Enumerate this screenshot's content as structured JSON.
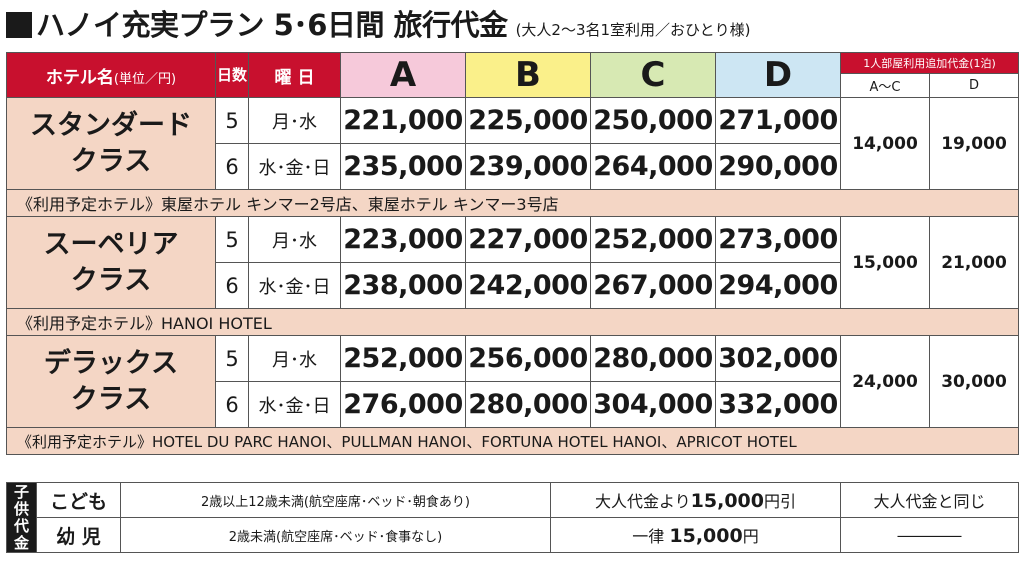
{
  "title": {
    "main": "ハノイ充実プラン 5･6日間 旅行代金",
    "sub": "(大人2～3名1室利用／おひとり様)"
  },
  "header": {
    "hotel": "ホテル名",
    "unit": "(単位／円)",
    "days": "日数",
    "weekday": "曜 日",
    "cols": [
      "A",
      "B",
      "C",
      "D"
    ],
    "extra": "1人部屋利用追加代金(1泊)",
    "extra_sub": [
      "A～C",
      "D"
    ]
  },
  "classes": [
    {
      "name_line1": "スタンダード",
      "name_line2": "クラス",
      "rows": [
        {
          "days": "5",
          "weekday": "月･水",
          "prices": [
            "221,000",
            "225,000",
            "250,000",
            "271,000"
          ]
        },
        {
          "days": "6",
          "weekday": "水･金･日",
          "prices": [
            "235,000",
            "239,000",
            "264,000",
            "290,000"
          ]
        }
      ],
      "extra": [
        "14,000",
        "19,000"
      ],
      "hotels": "《利用予定ホテル》東屋ホテル キンマー2号店、東屋ホテル キンマー3号店"
    },
    {
      "name_line1": "スーペリア",
      "name_line2": "クラス",
      "rows": [
        {
          "days": "5",
          "weekday": "月･水",
          "prices": [
            "223,000",
            "227,000",
            "252,000",
            "273,000"
          ]
        },
        {
          "days": "6",
          "weekday": "水･金･日",
          "prices": [
            "238,000",
            "242,000",
            "267,000",
            "294,000"
          ]
        }
      ],
      "extra": [
        "15,000",
        "21,000"
      ],
      "hotels": "《利用予定ホテル》HANOI HOTEL"
    },
    {
      "name_line1": "デラックス",
      "name_line2": "クラス",
      "rows": [
        {
          "days": "5",
          "weekday": "月･水",
          "prices": [
            "252,000",
            "256,000",
            "280,000",
            "302,000"
          ]
        },
        {
          "days": "6",
          "weekday": "水･金･日",
          "prices": [
            "276,000",
            "280,000",
            "304,000",
            "332,000"
          ]
        }
      ],
      "extra": [
        "24,000",
        "30,000"
      ],
      "hotels": "《利用予定ホテル》HOTEL DU PARC HANOI、PULLMAN HANOI、FORTUNA HOTEL HANOI、APRICOT HOTEL"
    }
  ],
  "children": {
    "label": "子供代金",
    "rows": [
      {
        "type": "こども",
        "cond": "2歳以上12歳未満(航空座席･ベッド･朝食あり)",
        "price_pre": "大人代金より",
        "price_num": "15,000",
        "price_post": "円引",
        "extra": "大人代金と同じ"
      },
      {
        "type": "幼 児",
        "cond": "2歳未満(航空座席･ベッド･食事なし)",
        "price_pre": "一律 ",
        "price_num": "15,000",
        "price_post": "円",
        "extra": "――――"
      }
    ]
  },
  "colors": {
    "accent": "#c8102e",
    "A": "#f6c9da",
    "B": "#faf08a",
    "C": "#d7e9b3",
    "D": "#cde6f3",
    "class_bg": "#f4d6c5"
  }
}
